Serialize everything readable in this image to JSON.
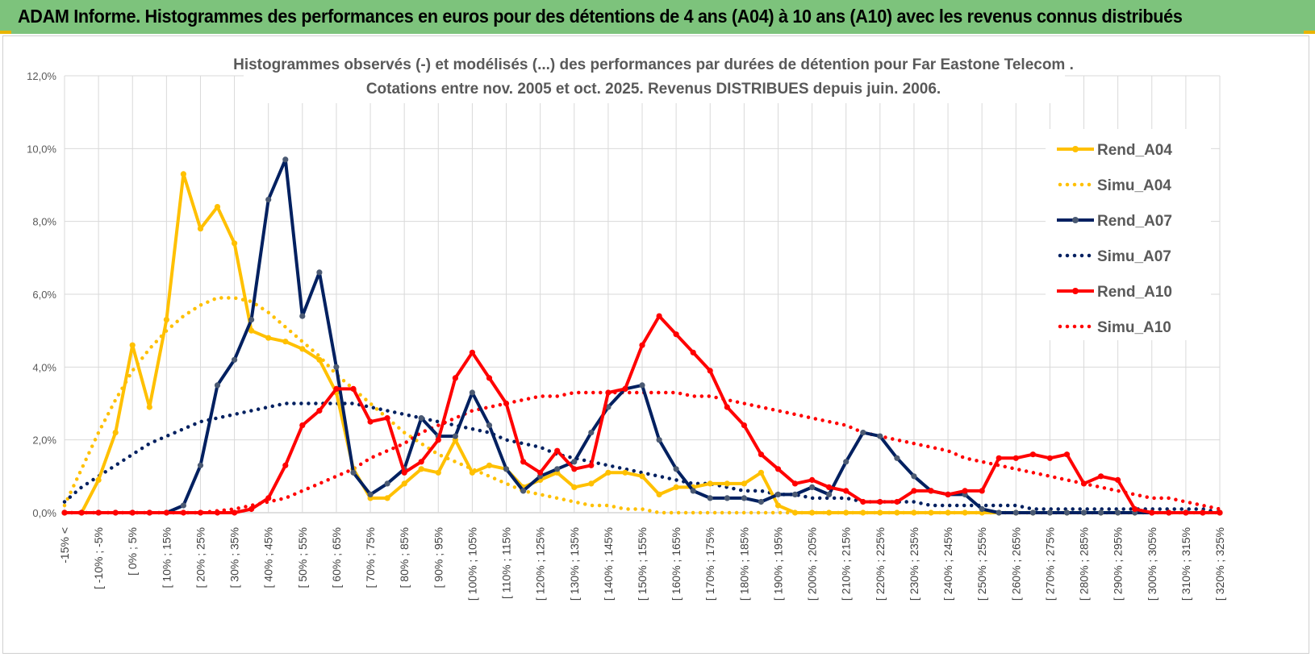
{
  "banner": {
    "title": "ADAM Informe. Histogrammes des performances en euros pour des détentions de 4 ans (A04) à 10 ans (A10) avec les revenus connus distribués"
  },
  "colors": {
    "banner": "#7dc37c",
    "a04": "#ffc000",
    "a07": "#002060",
    "a10": "#ff0000",
    "grid": "#d9d9d9"
  },
  "chart_data": {
    "type": "line",
    "title": "Histogrammes observés (-) et modélisés (...) des performances par durées de détention pour Far Eastone Telecom .",
    "subtitle": "Cotations entre nov. 2005 et oct. 2025.  Revenus DISTRIBUES depuis juin. 2006.",
    "ylim": [
      0,
      12
    ],
    "y_ticks": [
      "0,0%",
      "2,0%",
      "4,0%",
      "6,0%",
      "8,0%",
      "10,0%",
      "12,0%"
    ],
    "x_labels": [
      "-15% <",
      "[ -10% ; -5%",
      "[ 0% ; 5%",
      "[ 10% ; 15%",
      "[ 20% ; 25%",
      "[ 30% ; 35%",
      "[ 40% ; 45%",
      "[ 50% ; 55%",
      "[ 60% ; 65%",
      "[ 70% ; 75%",
      "[ 80% ; 85%",
      "[ 90% ; 95%",
      "[ 100% ; 105%",
      "[ 110% ; 115%",
      "[ 120% ; 125%",
      "[ 130% ; 135%",
      "[ 140% ; 145%",
      "[ 150% ; 155%",
      "[ 160% ; 165%",
      "[ 170% ; 175%",
      "[ 180% ; 185%",
      "[ 190% ; 195%",
      "[ 200% ; 205%",
      "[ 210% ; 215%",
      "[ 220% ; 225%",
      "[ 230% ; 235%",
      "[ 240% ; 245%",
      "[ 250% ; 255%",
      "[ 260% ; 265%",
      "[ 270% ; 275%",
      "[ 280% ; 285%",
      "[ 290% ; 295%",
      "[ 300% ; 305%",
      "[ 310% ; 315%",
      "[ 320% ; 325%"
    ],
    "num_bins": 69,
    "series": [
      {
        "name": "Rend_A04",
        "style": "solid",
        "color": "#ffc000",
        "values": [
          0,
          0,
          0.9,
          2.2,
          4.6,
          2.9,
          5.3,
          9.3,
          7.8,
          8.4,
          7.4,
          5.0,
          4.8,
          4.7,
          4.5,
          4.2,
          3.3,
          1.2,
          0.4,
          0.4,
          0.8,
          1.2,
          1.1,
          2.0,
          1.1,
          1.3,
          1.2,
          0.7,
          0.9,
          1.1,
          0.7,
          0.8,
          1.1,
          1.1,
          1.0,
          0.5,
          0.7,
          0.7,
          0.8,
          0.8,
          0.8,
          1.1,
          0.2,
          0,
          0,
          0,
          0,
          0,
          0,
          0,
          0,
          0,
          0,
          0,
          0,
          0,
          0,
          0,
          0,
          0,
          0,
          0,
          0,
          0,
          0,
          0,
          0,
          0,
          0
        ]
      },
      {
        "name": "Simu_A04",
        "style": "dotted",
        "color": "#ffc000",
        "values": [
          0.2,
          1.2,
          2.2,
          3.1,
          3.9,
          4.5,
          5.0,
          5.4,
          5.7,
          5.9,
          5.9,
          5.8,
          5.5,
          5.1,
          4.7,
          4.3,
          3.8,
          3.4,
          3.0,
          2.6,
          2.2,
          1.9,
          1.6,
          1.4,
          1.2,
          1.0,
          0.8,
          0.6,
          0.5,
          0.4,
          0.3,
          0.2,
          0.2,
          0.1,
          0.1,
          0,
          0,
          0,
          0,
          0,
          0,
          0,
          0,
          0,
          0,
          0,
          0,
          0,
          0,
          0,
          0,
          0,
          0,
          0,
          0,
          0,
          0,
          0,
          0,
          0,
          0,
          0,
          0,
          0,
          0,
          0,
          0,
          0,
          0
        ]
      },
      {
        "name": "Rend_A07",
        "style": "solid",
        "color": "#002060",
        "values": [
          0,
          0,
          0,
          0,
          0,
          0,
          0,
          0.2,
          1.3,
          3.5,
          4.2,
          5.3,
          8.6,
          9.7,
          5.4,
          6.6,
          4.0,
          1.1,
          0.5,
          0.8,
          1.2,
          2.6,
          2.1,
          2.1,
          3.3,
          2.4,
          1.2,
          0.6,
          1.0,
          1.2,
          1.4,
          2.2,
          2.9,
          3.4,
          3.5,
          2.0,
          1.2,
          0.6,
          0.4,
          0.4,
          0.4,
          0.3,
          0.5,
          0.5,
          0.7,
          0.5,
          1.4,
          2.2,
          2.1,
          1.5,
          1.0,
          0.6,
          0.5,
          0.5,
          0.1,
          0,
          0,
          0,
          0,
          0,
          0,
          0,
          0,
          0,
          0,
          0,
          0,
          0,
          0
        ]
      },
      {
        "name": "Simu_A07",
        "style": "dotted",
        "color": "#002060",
        "values": [
          0.3,
          0.7,
          1.0,
          1.3,
          1.6,
          1.9,
          2.1,
          2.3,
          2.5,
          2.6,
          2.7,
          2.8,
          2.9,
          3.0,
          3.0,
          3.0,
          3.0,
          3.0,
          2.9,
          2.8,
          2.7,
          2.6,
          2.5,
          2.4,
          2.3,
          2.2,
          2.0,
          1.9,
          1.8,
          1.6,
          1.5,
          1.4,
          1.3,
          1.2,
          1.1,
          1.0,
          0.9,
          0.8,
          0.8,
          0.7,
          0.6,
          0.6,
          0.5,
          0.5,
          0.4,
          0.4,
          0.4,
          0.3,
          0.3,
          0.3,
          0.3,
          0.2,
          0.2,
          0.2,
          0.2,
          0.2,
          0.2,
          0.1,
          0.1,
          0.1,
          0.1,
          0.1,
          0.1,
          0.1,
          0.1,
          0.1,
          0.1,
          0.1,
          0
        ]
      },
      {
        "name": "Rend_A10",
        "style": "solid",
        "color": "#ff0000",
        "values": [
          0,
          0,
          0,
          0,
          0,
          0,
          0,
          0,
          0,
          0,
          0,
          0.1,
          0.4,
          1.3,
          2.4,
          2.8,
          3.4,
          3.4,
          2.5,
          2.6,
          1.1,
          1.4,
          2.0,
          3.7,
          4.4,
          3.7,
          3.0,
          1.4,
          1.1,
          1.7,
          1.2,
          1.3,
          3.3,
          3.4,
          4.6,
          5.4,
          4.9,
          4.4,
          3.9,
          2.9,
          2.4,
          1.6,
          1.2,
          0.8,
          0.9,
          0.7,
          0.6,
          0.3,
          0.3,
          0.3,
          0.6,
          0.6,
          0.5,
          0.6,
          0.6,
          1.5,
          1.5,
          1.6,
          1.5,
          1.6,
          0.8,
          1.0,
          0.9,
          0.1,
          0,
          0,
          0,
          0,
          0
        ]
      },
      {
        "name": "Simu_A10",
        "style": "dotted",
        "color": "#ff0000",
        "values": [
          0,
          0,
          0,
          0,
          0,
          0,
          0,
          0,
          0,
          0.05,
          0.1,
          0.2,
          0.3,
          0.4,
          0.6,
          0.8,
          1.0,
          1.2,
          1.5,
          1.7,
          1.9,
          2.2,
          2.4,
          2.6,
          2.8,
          2.9,
          3.0,
          3.1,
          3.2,
          3.2,
          3.3,
          3.3,
          3.3,
          3.3,
          3.3,
          3.3,
          3.3,
          3.2,
          3.2,
          3.1,
          3.0,
          2.9,
          2.8,
          2.7,
          2.6,
          2.5,
          2.4,
          2.2,
          2.1,
          2.0,
          1.9,
          1.8,
          1.7,
          1.5,
          1.4,
          1.3,
          1.2,
          1.1,
          1.0,
          0.9,
          0.8,
          0.7,
          0.6,
          0.5,
          0.4,
          0.4,
          0.3,
          0.2,
          0.1
        ]
      }
    ]
  }
}
